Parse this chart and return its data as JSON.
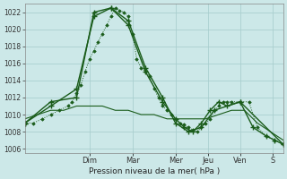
{
  "background_color": "#cce8e8",
  "grid_color": "#aacfcf",
  "line_color": "#1a5c1a",
  "title": "Pression niveau de la mer( hPa )",
  "ylim": [
    1005.5,
    1023.0
  ],
  "yticks": [
    1006,
    1008,
    1010,
    1012,
    1014,
    1016,
    1018,
    1020,
    1022
  ],
  "day_labels": [
    "Dim",
    "Mar",
    "Mer",
    "Jeu",
    "Ven",
    "S"
  ],
  "day_positions": [
    0.25,
    0.417,
    0.583,
    0.708,
    0.833,
    0.958
  ],
  "xlim": [
    0,
    1
  ],
  "series1_x": [
    0.0,
    0.033,
    0.067,
    0.1,
    0.133,
    0.167,
    0.183,
    0.2,
    0.217,
    0.233,
    0.25,
    0.267,
    0.283,
    0.3,
    0.317,
    0.333,
    0.35,
    0.367,
    0.383,
    0.4,
    0.417,
    0.433,
    0.45,
    0.467,
    0.483,
    0.5,
    0.517,
    0.533,
    0.55,
    0.567,
    0.583,
    0.6,
    0.617,
    0.633,
    0.65,
    0.667,
    0.683,
    0.7,
    0.717,
    0.733,
    0.75,
    0.767,
    0.783,
    0.8,
    0.833,
    0.867,
    0.9,
    0.933,
    0.967,
    1.0
  ],
  "series1_y": [
    1009.0,
    1009.0,
    1009.5,
    1010.0,
    1010.5,
    1011.0,
    1011.5,
    1012.5,
    1013.5,
    1015.0,
    1016.5,
    1017.5,
    1018.5,
    1019.5,
    1020.5,
    1021.5,
    1022.5,
    1022.2,
    1022.0,
    1021.5,
    1019.5,
    1016.5,
    1015.5,
    1015.0,
    1014.5,
    1013.0,
    1012.0,
    1011.0,
    1010.5,
    1010.0,
    1009.5,
    1009.0,
    1008.8,
    1008.5,
    1008.2,
    1008.0,
    1008.5,
    1009.0,
    1009.5,
    1010.5,
    1011.0,
    1011.5,
    1011.5,
    1011.5,
    1011.5,
    1011.5,
    1008.5,
    1007.5,
    1007.0,
    1006.5
  ],
  "series2_x": [
    0.0,
    0.05,
    0.1,
    0.15,
    0.2,
    0.25,
    0.3,
    0.35,
    0.4,
    0.45,
    0.5,
    0.55,
    0.6,
    0.65,
    0.7,
    0.75,
    0.8,
    0.85,
    0.9,
    0.95,
    1.0
  ],
  "series2_y": [
    1009.5,
    1010.0,
    1010.5,
    1010.5,
    1011.0,
    1011.0,
    1011.0,
    1010.5,
    1010.5,
    1010.0,
    1010.0,
    1009.5,
    1009.5,
    1009.5,
    1009.5,
    1010.0,
    1010.5,
    1010.5,
    1009.0,
    1008.0,
    1007.0
  ],
  "series3_x": [
    0.0,
    0.1,
    0.2,
    0.267,
    0.333,
    0.4,
    0.467,
    0.533,
    0.583,
    0.633,
    0.683,
    0.733,
    0.833,
    1.0
  ],
  "series3_y": [
    1009.0,
    1011.0,
    1013.0,
    1021.5,
    1022.5,
    1021.0,
    1015.5,
    1012.0,
    1009.0,
    1008.0,
    1008.5,
    1010.5,
    1011.5,
    1006.5
  ],
  "series4_x": [
    0.0,
    0.1,
    0.2,
    0.267,
    0.333,
    0.4,
    0.467,
    0.533,
    0.583,
    0.617,
    0.65,
    0.683,
    0.717,
    0.75,
    0.783,
    0.833,
    0.883,
    0.933,
    0.967,
    1.0
  ],
  "series4_y": [
    1009.0,
    1011.5,
    1012.0,
    1022.0,
    1022.5,
    1020.5,
    1015.0,
    1011.5,
    1009.5,
    1008.5,
    1008.0,
    1009.0,
    1010.5,
    1011.5,
    1011.0,
    1011.5,
    1008.5,
    1007.5,
    1007.0,
    1006.5
  ]
}
